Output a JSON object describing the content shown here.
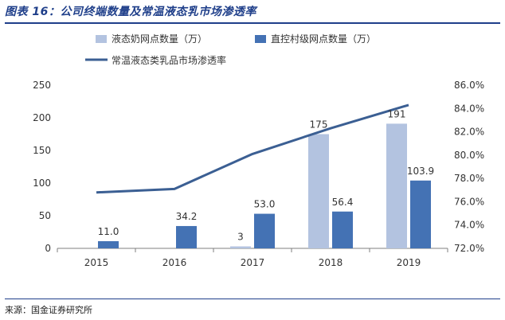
{
  "figure": {
    "title": "图表 16：公司终端数量及常温液态乳市场渗透率",
    "source": "来源：国金证券研究所"
  },
  "colors": {
    "light_bar": "#b3c3e0",
    "dark_bar": "#4472b4",
    "line": "#3b5f93",
    "axis": "#7f7f7f",
    "text": "#333333",
    "title": "#1f3f8a"
  },
  "chart_data": {
    "type": "bar",
    "categories": [
      "2015",
      "2016",
      "2017",
      "2018",
      "2019"
    ],
    "series": [
      {
        "name": "液态奶网点数量（万）",
        "type": "bar",
        "axis": "left",
        "values": [
          null,
          null,
          3,
          175,
          191
        ],
        "labels": [
          "",
          "",
          "3",
          "175",
          "191"
        ]
      },
      {
        "name": "直控村级网点数量（万）",
        "type": "bar",
        "axis": "left",
        "values": [
          11.0,
          34.2,
          53.0,
          56.4,
          103.9
        ],
        "labels": [
          "11.0",
          "34.2",
          "53.0",
          "56.4",
          "103.9"
        ]
      },
      {
        "name": "常温液态类乳品市场渗透率",
        "type": "line",
        "axis": "right",
        "values": [
          76.8,
          77.1,
          80.1,
          82.3,
          84.3
        ]
      }
    ],
    "y_left": {
      "min": 0,
      "max": 250,
      "ticks": [
        "0",
        "50",
        "100",
        "150",
        "200",
        "250"
      ]
    },
    "y_right": {
      "min": 72,
      "max": 86,
      "ticks": [
        "72.0%",
        "74.0%",
        "76.0%",
        "78.0%",
        "80.0%",
        "82.0%",
        "84.0%",
        "86.0%"
      ]
    },
    "legend_position": "top"
  }
}
